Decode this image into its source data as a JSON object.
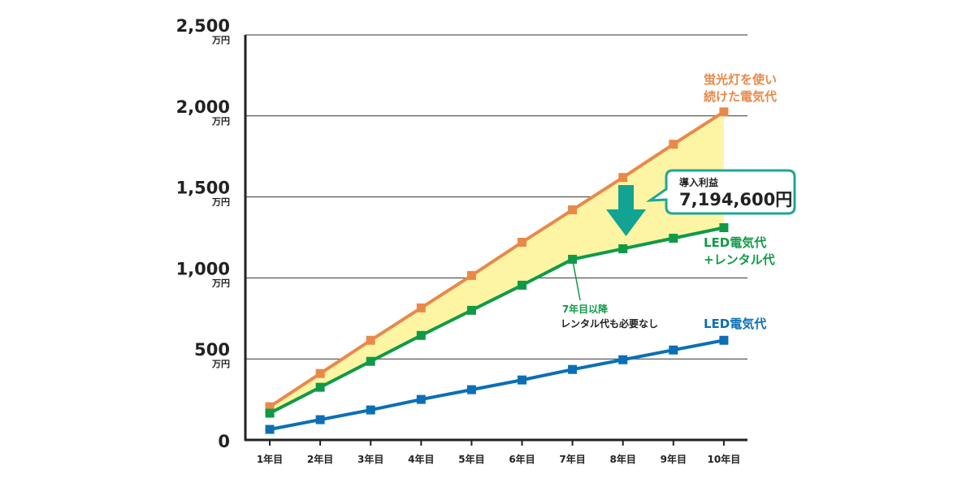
{
  "chart_data": {
    "type": "line",
    "categories": [
      "1年目",
      "2年目",
      "3年目",
      "4年目",
      "5年目",
      "6年目",
      "7年目",
      "8年目",
      "9年目",
      "10年目"
    ],
    "y_ticks": [
      {
        "value": 0,
        "label": "0",
        "unit": ""
      },
      {
        "value": 500,
        "label": "500",
        "unit": "万円"
      },
      {
        "value": 1000,
        "label": "1,000",
        "unit": "万円"
      },
      {
        "value": 1500,
        "label": "1,500",
        "unit": "万円"
      },
      {
        "value": 2000,
        "label": "2,000",
        "unit": "万円"
      },
      {
        "value": 2500,
        "label": "2,500",
        "unit": "万円"
      }
    ],
    "ylim": [
      0,
      2500
    ],
    "grid": true,
    "series": [
      {
        "key": "fluorescent",
        "name_lines": [
          "蛍光灯を使い",
          "続けた電気代"
        ],
        "color": "#e8894a",
        "values": [
          205,
          410,
          615,
          815,
          1015,
          1220,
          1420,
          1620,
          1825,
          2025
        ]
      },
      {
        "key": "led_rental",
        "name_lines": [
          "LED電気代",
          "+レンタル代"
        ],
        "color": "#0f9a48",
        "values": [
          165,
          325,
          485,
          645,
          800,
          955,
          1115,
          1180,
          1245,
          1310
        ]
      },
      {
        "key": "led",
        "name_lines": [
          "LED電気代"
        ],
        "color": "#0b6fb5",
        "values": [
          65,
          125,
          185,
          250,
          310,
          370,
          435,
          495,
          555,
          615
        ]
      }
    ],
    "fill_between": {
      "upper": "fluorescent",
      "lower": "led_rental",
      "color": "#fdf5a4"
    },
    "annotations": {
      "benefit": {
        "title": "導入利益",
        "value": "7,194,600円",
        "border_color": "#1ea796",
        "arrow_color": "#13a392"
      },
      "note": {
        "line1": "7年目以降",
        "line2": "レンタル代も必要なし",
        "line1_color": "#0f9a48",
        "line2_color": "#222222"
      }
    }
  }
}
